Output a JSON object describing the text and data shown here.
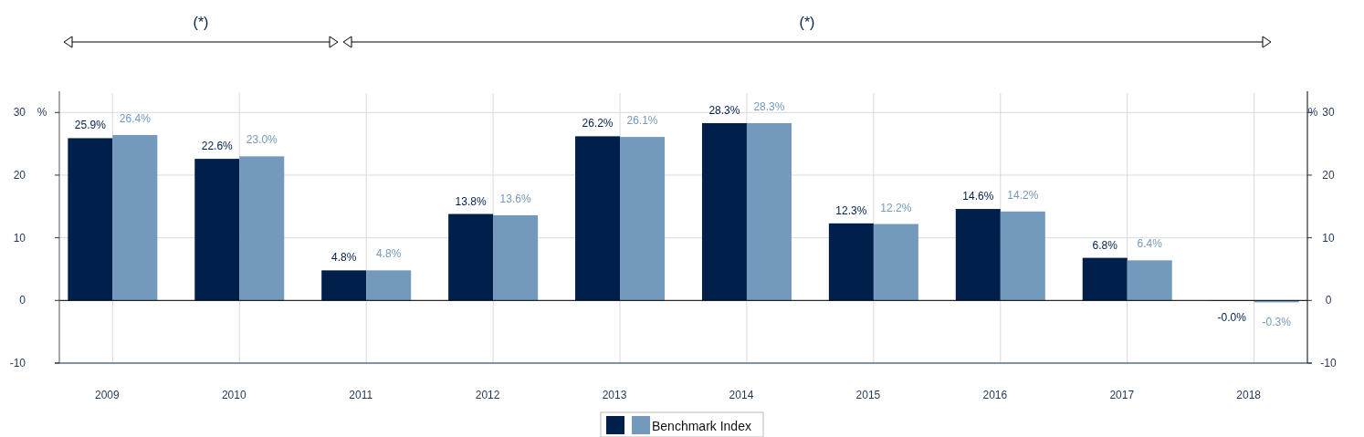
{
  "chart_data": {
    "type": "bar",
    "ylabel": "%",
    "y2label": "%",
    "annotations": [
      "(*)",
      "(*)"
    ],
    "categories": [
      "2009",
      "2010",
      "2011",
      "2012",
      "2013",
      "2014",
      "2015",
      "2016",
      "2017",
      "2018"
    ],
    "series": [
      {
        "color": "#001f4b",
        "values": [
          25.9,
          22.6,
          4.8,
          13.8,
          26.2,
          28.3,
          12.3,
          14.6,
          6.8,
          -0.04
        ],
        "value_labels": [
          "25.9%",
          "22.6%",
          "4.8%",
          "13.8%",
          "26.2%",
          "28.3%",
          "12.3%",
          "14.6%",
          "6.8%",
          "-0.0%"
        ]
      },
      {
        "name": "Benchmark Index",
        "color": "#7399bd",
        "values": [
          26.4,
          23.0,
          4.8,
          13.6,
          26.1,
          28.3,
          12.2,
          14.2,
          6.4,
          -0.3
        ],
        "value_labels": [
          "26.4%",
          "23.0%",
          "4.8%",
          "13.6%",
          "26.1%",
          "28.3%",
          "12.2%",
          "14.2%",
          "6.4%",
          "-0.3%"
        ]
      }
    ],
    "ylim": [
      -10,
      33.1
    ],
    "yticks": [
      -10,
      0,
      10,
      20,
      30
    ],
    "y2lim": [
      -10,
      33.1
    ],
    "y2ticks": [
      -10,
      0,
      10,
      20,
      30
    ],
    "grid": true,
    "legend": "bottom"
  }
}
